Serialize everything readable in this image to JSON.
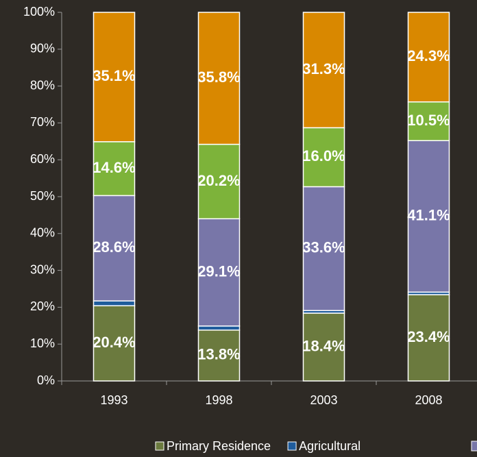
{
  "chart_data": {
    "type": "stacked_bar",
    "categories": [
      "1993",
      "1998",
      "2003",
      "2008"
    ],
    "series": [
      {
        "name": "Primary Residence",
        "color": "#6b7a3e",
        "values": [
          20.4,
          13.8,
          18.4,
          23.4
        ],
        "value_labels": [
          "20.4%",
          "13.8%",
          "18.4%",
          "23.4%"
        ]
      },
      {
        "name": "Agricultural",
        "color": "#1f5c9c",
        "values": [
          1.3,
          1.1,
          0.7,
          0.7
        ]
      },
      {
        "color": "#7876a8",
        "values": [
          28.6,
          29.1,
          33.6,
          41.1
        ],
        "value_labels": [
          "28.6%",
          "29.1%",
          "33.6%",
          "41.1%"
        ]
      },
      {
        "color": "#7db33a",
        "values": [
          14.6,
          20.2,
          16.0,
          10.5
        ],
        "value_labels": [
          "14.6%",
          "20.2%",
          "16.0%",
          "10.5%"
        ]
      },
      {
        "color": "#d98800",
        "values": [
          35.1,
          35.8,
          31.3,
          24.3
        ],
        "value_labels": [
          "35.1%",
          "35.8%",
          "31.3%",
          "24.3%"
        ]
      }
    ],
    "ylim": [
      0,
      100
    ],
    "yticks": [
      {
        "value": 0,
        "label": "0%"
      },
      {
        "value": 10,
        "label": "10%"
      },
      {
        "value": 20,
        "label": "20%"
      },
      {
        "value": 30,
        "label": "30%"
      },
      {
        "value": 40,
        "label": "40%"
      },
      {
        "value": 50,
        "label": "50%"
      },
      {
        "value": 60,
        "label": "60%"
      },
      {
        "value": 70,
        "label": "70%"
      },
      {
        "value": 80,
        "label": "80%"
      },
      {
        "value": 90,
        "label": "90%"
      },
      {
        "value": 100,
        "label": "100%"
      }
    ],
    "grid": false
  }
}
